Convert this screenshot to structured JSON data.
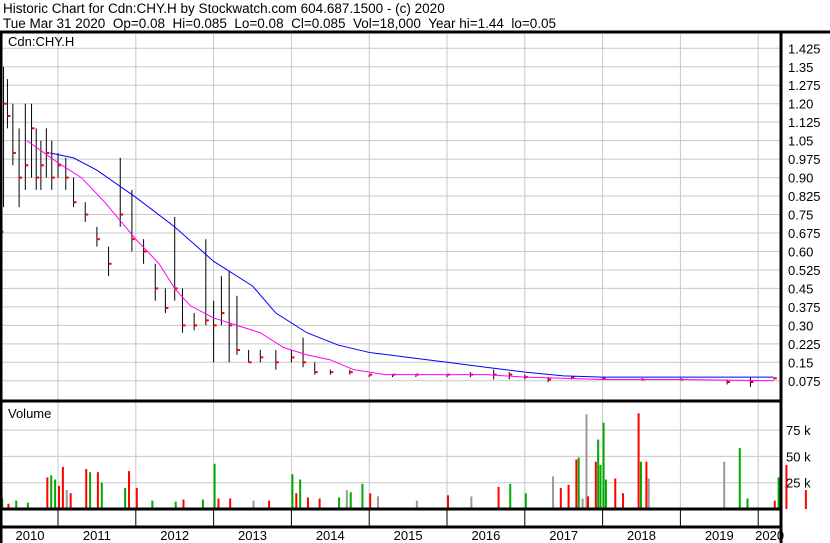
{
  "header": {
    "line1": "Historic Chart for Cdn:CHY.H by Stockwatch.com 604.687.1500 - (c) 2020",
    "line2": "Tue Mar 31 2020  Op=0.08  Hi=0.085  Lo=0.08  Cl=0.085  Vol=18,000  Year hi=1.44  lo=0.05"
  },
  "colors": {
    "ma_long": "#0000ff",
    "ma_short": "#ff00ff",
    "down": "#ff0000",
    "up": "#00aa00",
    "unch": "#999999",
    "price_bar": "#000000"
  },
  "chart_data": [
    {
      "type": "line",
      "title": "Cdn:CHY.H",
      "yticks": [
        "1.425",
        "1.35",
        "1.275",
        "1.20",
        "1.125",
        "1.05",
        "0.975",
        "0.90",
        "0.825",
        "0.75",
        "0.675",
        "0.60",
        "0.525",
        "0.45",
        "0.375",
        "0.30",
        "0.225",
        "0.15",
        "0.075"
      ],
      "ylim": [
        0.04,
        1.5
      ],
      "xlim": [
        2010.25,
        2020.25
      ],
      "grid": true,
      "price_bars": [
        [
          2010.26,
          0.7,
          0.68,
          0.68
        ],
        [
          2010.3,
          1.35,
          0.78,
          1.2
        ],
        [
          2010.35,
          1.3,
          1.1,
          1.15
        ],
        [
          2010.42,
          1.2,
          0.95,
          1.0
        ],
        [
          2010.5,
          1.1,
          0.78,
          0.9
        ],
        [
          2010.58,
          1.2,
          0.85,
          0.95
        ],
        [
          2010.66,
          1.2,
          0.9,
          1.1
        ],
        [
          2010.72,
          1.1,
          0.85,
          0.9
        ],
        [
          2010.78,
          1.05,
          0.85,
          0.95
        ],
        [
          2010.85,
          1.1,
          0.9,
          1.0
        ],
        [
          2010.92,
          1.05,
          0.85,
          0.9
        ],
        [
          2011.0,
          1.0,
          0.9,
          0.95
        ],
        [
          2011.1,
          0.98,
          0.85,
          0.9
        ],
        [
          2011.2,
          0.9,
          0.78,
          0.8
        ],
        [
          2011.35,
          0.8,
          0.72,
          0.75
        ],
        [
          2011.5,
          0.7,
          0.62,
          0.65
        ],
        [
          2011.65,
          0.62,
          0.5,
          0.55
        ],
        [
          2011.8,
          0.98,
          0.7,
          0.75
        ],
        [
          2011.95,
          0.85,
          0.6,
          0.65
        ],
        [
          2012.1,
          0.65,
          0.55,
          0.6
        ],
        [
          2012.25,
          0.55,
          0.4,
          0.45
        ],
        [
          2012.38,
          0.45,
          0.35,
          0.37
        ],
        [
          2012.5,
          0.74,
          0.4,
          0.45
        ],
        [
          2012.6,
          0.45,
          0.27,
          0.3
        ],
        [
          2012.75,
          0.35,
          0.28,
          0.3
        ],
        [
          2012.9,
          0.65,
          0.3,
          0.32
        ],
        [
          2013.0,
          0.4,
          0.15,
          0.3
        ],
        [
          2013.1,
          0.5,
          0.3,
          0.35
        ],
        [
          2013.2,
          0.52,
          0.15,
          0.3
        ],
        [
          2013.3,
          0.42,
          0.18,
          0.2
        ],
        [
          2013.45,
          0.2,
          0.15,
          0.15
        ],
        [
          2013.6,
          0.2,
          0.15,
          0.17
        ],
        [
          2013.8,
          0.2,
          0.12,
          0.15
        ],
        [
          2014.0,
          0.2,
          0.15,
          0.17
        ],
        [
          2014.15,
          0.25,
          0.13,
          0.15
        ],
        [
          2014.3,
          0.15,
          0.1,
          0.11
        ],
        [
          2014.5,
          0.12,
          0.1,
          0.11
        ],
        [
          2014.75,
          0.12,
          0.1,
          0.11
        ],
        [
          2015.0,
          0.1,
          0.09,
          0.1
        ],
        [
          2015.3,
          0.1,
          0.09,
          0.1
        ],
        [
          2015.6,
          0.1,
          0.09,
          0.1
        ],
        [
          2016.0,
          0.1,
          0.09,
          0.1
        ],
        [
          2016.3,
          0.11,
          0.09,
          0.1
        ],
        [
          2016.6,
          0.12,
          0.08,
          0.1
        ],
        [
          2016.8,
          0.11,
          0.08,
          0.1
        ],
        [
          2017.0,
          0.1,
          0.08,
          0.09
        ],
        [
          2017.3,
          0.09,
          0.07,
          0.08
        ],
        [
          2017.6,
          0.09,
          0.08,
          0.09
        ],
        [
          2018.0,
          0.085,
          0.08,
          0.085
        ],
        [
          2018.5,
          0.085,
          0.08,
          0.08
        ],
        [
          2019.0,
          0.085,
          0.08,
          0.08
        ],
        [
          2019.6,
          0.08,
          0.06,
          0.07
        ],
        [
          2019.9,
          0.09,
          0.05,
          0.07
        ],
        [
          2020.2,
          0.085,
          0.08,
          0.085
        ]
      ],
      "ma_long": [
        [
          2010.9,
          1.0
        ],
        [
          2011.2,
          0.98
        ],
        [
          2011.5,
          0.93
        ],
        [
          2012.0,
          0.82
        ],
        [
          2012.5,
          0.7
        ],
        [
          2013.0,
          0.56
        ],
        [
          2013.5,
          0.46
        ],
        [
          2013.8,
          0.35
        ],
        [
          2014.2,
          0.27
        ],
        [
          2014.6,
          0.22
        ],
        [
          2015.0,
          0.19
        ],
        [
          2015.5,
          0.17
        ],
        [
          2016.0,
          0.15
        ],
        [
          2016.5,
          0.13
        ],
        [
          2017.0,
          0.11
        ],
        [
          2017.5,
          0.095
        ],
        [
          2018.0,
          0.09
        ],
        [
          2019.0,
          0.09
        ],
        [
          2020.2,
          0.09
        ]
      ],
      "ma_short": [
        [
          2010.6,
          1.05
        ],
        [
          2011.0,
          0.96
        ],
        [
          2011.3,
          0.9
        ],
        [
          2011.6,
          0.8
        ],
        [
          2012.0,
          0.65
        ],
        [
          2012.3,
          0.55
        ],
        [
          2012.5,
          0.45
        ],
        [
          2012.7,
          0.38
        ],
        [
          2013.0,
          0.33
        ],
        [
          2013.3,
          0.3
        ],
        [
          2013.6,
          0.27
        ],
        [
          2013.9,
          0.21
        ],
        [
          2014.2,
          0.18
        ],
        [
          2014.5,
          0.16
        ],
        [
          2014.8,
          0.12
        ],
        [
          2015.2,
          0.1
        ],
        [
          2016.0,
          0.1
        ],
        [
          2016.5,
          0.1
        ],
        [
          2017.0,
          0.09
        ],
        [
          2018.0,
          0.08
        ],
        [
          2019.0,
          0.08
        ],
        [
          2020.2,
          0.075
        ]
      ]
    },
    {
      "type": "bar",
      "title": "Volume",
      "yticks": [
        "75 k",
        "50 k",
        "25 k"
      ],
      "ylim": [
        0,
        100000
      ],
      "bars": [
        [
          2010.27,
          10000,
          "up"
        ],
        [
          2010.35,
          5000,
          "down"
        ],
        [
          2010.45,
          8000,
          "up"
        ],
        [
          2010.6,
          6000,
          "up"
        ],
        [
          2010.85,
          30000,
          "down"
        ],
        [
          2010.9,
          32000,
          "up"
        ],
        [
          2010.95,
          28000,
          "up"
        ],
        [
          2011.0,
          22000,
          "down"
        ],
        [
          2011.05,
          40000,
          "down"
        ],
        [
          2011.1,
          18000,
          "unch"
        ],
        [
          2011.15,
          15000,
          "down"
        ],
        [
          2011.35,
          38000,
          "down"
        ],
        [
          2011.4,
          35000,
          "up"
        ],
        [
          2011.5,
          35000,
          "down"
        ],
        [
          2011.55,
          25000,
          "up"
        ],
        [
          2011.85,
          20000,
          "up"
        ],
        [
          2011.9,
          36000,
          "down"
        ],
        [
          2012.0,
          20000,
          "down"
        ],
        [
          2012.2,
          8000,
          "up"
        ],
        [
          2012.5,
          7000,
          "up"
        ],
        [
          2012.6,
          9000,
          "down"
        ],
        [
          2012.85,
          9000,
          "up"
        ],
        [
          2013.0,
          43000,
          "up"
        ],
        [
          2013.05,
          10000,
          "down"
        ],
        [
          2013.2,
          10000,
          "down"
        ],
        [
          2013.5,
          8000,
          "unch"
        ],
        [
          2013.7,
          8000,
          "down"
        ],
        [
          2014.0,
          33000,
          "up"
        ],
        [
          2014.05,
          15000,
          "down"
        ],
        [
          2014.1,
          28000,
          "up"
        ],
        [
          2014.2,
          11000,
          "down"
        ],
        [
          2014.35,
          10000,
          "down"
        ],
        [
          2014.6,
          11000,
          "up"
        ],
        [
          2014.7,
          18000,
          "unch"
        ],
        [
          2014.75,
          16000,
          "up"
        ],
        [
          2014.9,
          24000,
          "up"
        ],
        [
          2015.0,
          15000,
          "down"
        ],
        [
          2015.1,
          12000,
          "unch"
        ],
        [
          2015.6,
          8000,
          "unch"
        ],
        [
          2016.0,
          13000,
          "down"
        ],
        [
          2016.3,
          12000,
          "unch"
        ],
        [
          2016.65,
          21000,
          "down"
        ],
        [
          2016.8,
          24000,
          "up"
        ],
        [
          2017.0,
          15000,
          "up"
        ],
        [
          2017.35,
          31000,
          "unch"
        ],
        [
          2017.45,
          20000,
          "down"
        ],
        [
          2017.55,
          23000,
          "down"
        ],
        [
          2017.65,
          47000,
          "down"
        ],
        [
          2017.68,
          49000,
          "up"
        ],
        [
          2017.73,
          10000,
          "unch"
        ],
        [
          2017.78,
          90000,
          "unch"
        ],
        [
          2017.8,
          12000,
          "down"
        ],
        [
          2017.9,
          45000,
          "down"
        ],
        [
          2017.93,
          66000,
          "up"
        ],
        [
          2017.96,
          42000,
          "up"
        ],
        [
          2018.0,
          82000,
          "up"
        ],
        [
          2018.03,
          28000,
          "up"
        ],
        [
          2018.15,
          29000,
          "down"
        ],
        [
          2018.25,
          15000,
          "down"
        ],
        [
          2018.45,
          91000,
          "down"
        ],
        [
          2018.48,
          45000,
          "up"
        ],
        [
          2018.55,
          45000,
          "down"
        ],
        [
          2018.58,
          29000,
          "unch"
        ],
        [
          2019.55,
          45000,
          "unch"
        ],
        [
          2019.75,
          58000,
          "up"
        ],
        [
          2019.85,
          10000,
          "up"
        ],
        [
          2020.2,
          8000,
          "down"
        ],
        [
          2020.25,
          30000,
          "up"
        ],
        [
          2020.35,
          42000,
          "down"
        ],
        [
          2020.6,
          18000,
          "down"
        ]
      ]
    },
    {
      "type": "axis",
      "xticks": [
        "2010",
        "2011",
        "2012",
        "2013",
        "2014",
        "2015",
        "2016",
        "2017",
        "2018",
        "2019",
        "2020"
      ]
    }
  ]
}
